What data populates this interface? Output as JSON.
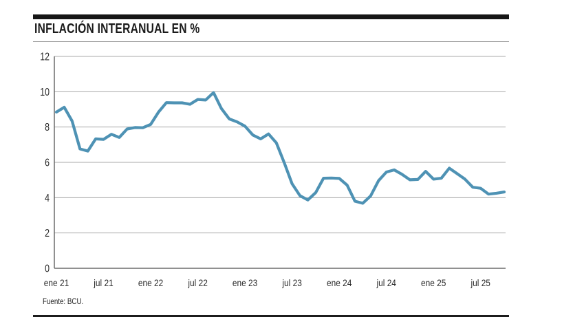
{
  "header": {
    "title": "INFLACIÓN INTERANUAL EN %"
  },
  "footer": {
    "source": "Fuente: BCU."
  },
  "colors": {
    "line": "#4e92b4",
    "grid": "#a8a8a8",
    "axis": "#6b6b6b",
    "accent_bar": "#161616",
    "text": "#2a2a2a"
  },
  "chart_data": {
    "type": "line",
    "title": "INFLACIÓN INTERANUAL EN %",
    "source": "Fuente: BCU.",
    "xlabel": "",
    "ylabel": "",
    "ylim": [
      0,
      12
    ],
    "yticks": [
      0,
      2,
      4,
      6,
      8,
      10,
      12
    ],
    "grid": true,
    "legend": false,
    "x_tick_every": 6,
    "x_tick_labels": [
      "ene 21",
      "jul 21",
      "ene 22",
      "jul 22",
      "ene 23",
      "jul 23",
      "ene 24",
      "jul 24",
      "ene 25",
      "jul 25"
    ],
    "x": [
      "ene 21",
      "feb 21",
      "mar 21",
      "abr 21",
      "may 21",
      "jun 21",
      "jul 21",
      "ago 21",
      "sep 21",
      "oct 21",
      "nov 21",
      "dic 21",
      "ene 22",
      "feb 22",
      "mar 22",
      "abr 22",
      "may 22",
      "jun 22",
      "jul 22",
      "ago 22",
      "sep 22",
      "oct 22",
      "nov 22",
      "dic 22",
      "ene 23",
      "feb 23",
      "mar 23",
      "abr 23",
      "may 23",
      "jun 23",
      "jul 23",
      "ago 23",
      "sep 23",
      "oct 23",
      "nov 23",
      "dic 23",
      "ene 24",
      "feb 24",
      "mar 24",
      "abr 24",
      "may 24",
      "jun 24",
      "jul 24",
      "ago 24",
      "sep 24",
      "oct 24",
      "nov 24",
      "dic 24",
      "ene 25",
      "feb 25",
      "mar 25",
      "abr 25",
      "may 25",
      "jun 25",
      "jul 25",
      "ago 25",
      "sep 25",
      "oct 25"
    ],
    "series": [
      {
        "name": "Inflación interanual (%)",
        "values": [
          8.85,
          9.12,
          8.34,
          6.76,
          6.64,
          7.33,
          7.3,
          7.59,
          7.41,
          7.89,
          7.97,
          7.96,
          8.15,
          8.85,
          9.38,
          9.37,
          9.37,
          9.29,
          9.56,
          9.53,
          9.95,
          9.05,
          8.46,
          8.29,
          8.05,
          7.55,
          7.33,
          7.61,
          7.1,
          5.98,
          4.79,
          4.11,
          3.87,
          4.28,
          5.1,
          5.11,
          5.09,
          4.71,
          3.8,
          3.68,
          4.1,
          4.96,
          5.45,
          5.57,
          5.32,
          5.01,
          5.03,
          5.49,
          5.05,
          5.1,
          5.67,
          5.36,
          5.05,
          4.59,
          4.53,
          4.2,
          4.25,
          4.32
        ]
      }
    ]
  }
}
